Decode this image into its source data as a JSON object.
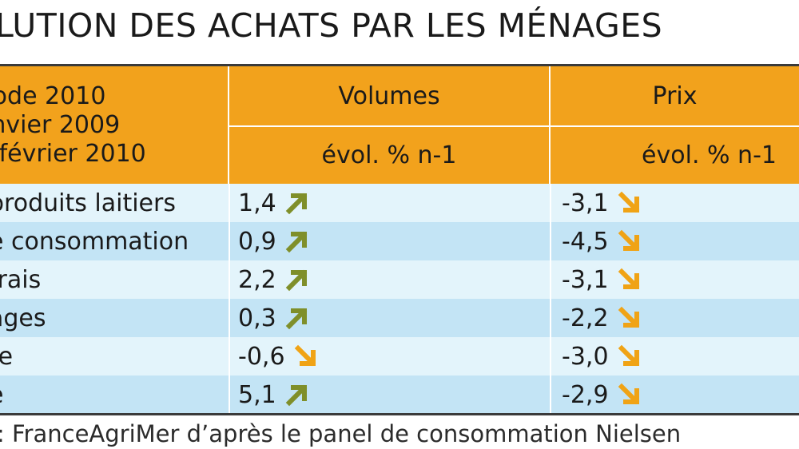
{
  "title": "LUTION DES ACHATS PAR LES MÉNAGES",
  "header": {
    "period_lines": [
      "riode 2010",
      "anvier 2009",
      "3 février 2010"
    ],
    "volumes_label": "Volumes",
    "prix_label": "Prix",
    "volumes_sub": "évol. % n-1",
    "prix_sub": "évol. % n-1"
  },
  "rows": [
    {
      "label": "produits laitiers",
      "volume": "1,4",
      "volume_dir": "up",
      "prix": "-3,1",
      "prix_dir": "down"
    },
    {
      "label": "e consommation",
      "volume": "0,9",
      "volume_dir": "up",
      "prix": "-4,5",
      "prix_dir": "down"
    },
    {
      "label": "frais",
      "volume": "2,2",
      "volume_dir": "up",
      "prix": "-3,1",
      "prix_dir": "down"
    },
    {
      "label": "ages",
      "volume": "0,3",
      "volume_dir": "up",
      "prix": "-2,2",
      "prix_dir": "down"
    },
    {
      "label": "re",
      "volume": "-0,6",
      "volume_dir": "down",
      "prix": "-3,0",
      "prix_dir": "down"
    },
    {
      "label": "e",
      "volume": "5,1",
      "volume_dir": "up",
      "prix": "-2,9",
      "prix_dir": "down"
    }
  ],
  "source": ": FranceAgriMer d’après le panel de consommation Nielsen",
  "colors": {
    "header": "#f2a21c",
    "row_light": "#e3f4fb",
    "row_dark": "#c3e4f5",
    "arrow_up": "#7f8f2a",
    "arrow_down": "#f0a315"
  }
}
